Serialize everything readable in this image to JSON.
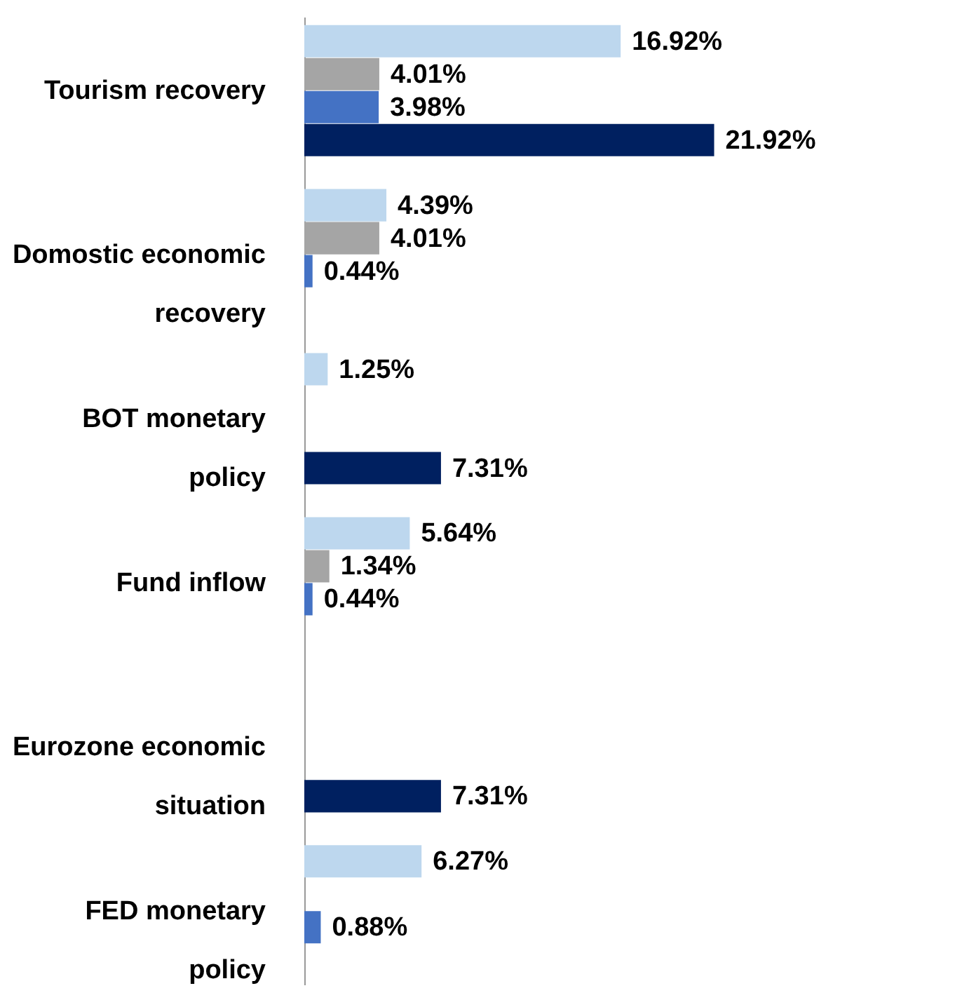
{
  "chart_data": {
    "type": "bar",
    "orientation": "horizontal",
    "categories": [
      "Tourism recovery",
      "Domostic economic recovery",
      "BOT monetary policy",
      "Fund inflow",
      "Eurozone economic situation",
      "FED monetary policy"
    ],
    "xlim": [
      0,
      30
    ],
    "series": [
      {
        "color": "#bdd7ee",
        "values": [
          16.92,
          4.39,
          1.25,
          5.64,
          null,
          6.27
        ],
        "value_labels": [
          "16.92%",
          "4.39%",
          "1.25%",
          "5.64%",
          null,
          "6.27%"
        ]
      },
      {
        "color": "#a5a5a5",
        "values": [
          4.01,
          4.01,
          null,
          1.34,
          null,
          null
        ],
        "value_labels": [
          "4.01%",
          "4.01%",
          null,
          "1.34%",
          null,
          null
        ]
      },
      {
        "color": "#4472c4",
        "values": [
          3.98,
          0.44,
          null,
          0.44,
          null,
          0.88
        ],
        "value_labels": [
          "3.98%",
          "0.44%",
          null,
          "0.44%",
          null,
          "0.88%"
        ]
      },
      {
        "color": "#002060",
        "values": [
          21.92,
          null,
          7.31,
          null,
          7.31,
          null
        ],
        "value_labels": [
          "21.92%",
          null,
          "7.31%",
          null,
          "7.31%",
          null
        ]
      }
    ]
  }
}
